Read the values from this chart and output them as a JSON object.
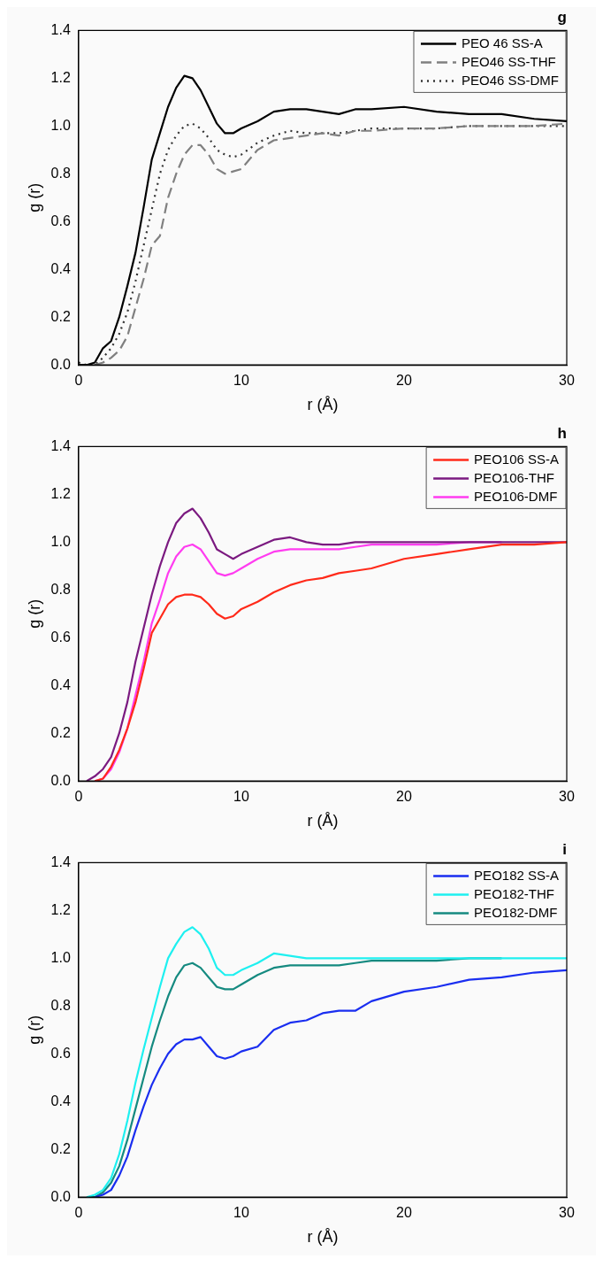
{
  "chart_data": [
    {
      "type": "line",
      "title": "g",
      "xlabel": "r (Å)",
      "ylabel": "g (r)",
      "legend": "top right",
      "marker": "none",
      "x": [
        0,
        0.5,
        1,
        1.5,
        2,
        2.5,
        3,
        3.5,
        4,
        4.5,
        5,
        5.5,
        6,
        6.5,
        7,
        7.5,
        8,
        8.5,
        9,
        9.5,
        10,
        11,
        12,
        13,
        14,
        15,
        16,
        17,
        18,
        20,
        22,
        24,
        26,
        28,
        30
      ],
      "xlim": [
        0,
        30
      ],
      "xticks": [
        0,
        10,
        20,
        30
      ],
      "ylim": [
        0,
        1.4
      ],
      "yticks": [
        {
          "value": 0,
          "label": "0.0"
        },
        {
          "value": 0.2,
          "label": "0.2"
        },
        {
          "value": 0.4,
          "label": "0.4"
        },
        {
          "value": 0.6,
          "label": "0.6"
        },
        {
          "value": 0.8,
          "label": "0.8"
        },
        {
          "value": 1,
          "label": "1.0"
        },
        {
          "value": 1.2,
          "label": "1.2"
        },
        {
          "value": 1.4,
          "label": "1.4"
        }
      ],
      "series": [
        {
          "name": "PEO 46 SS-A",
          "color": "#000000",
          "line_style": "solid",
          "values": [
            0,
            0,
            0.01,
            0.07,
            0.1,
            0.2,
            0.33,
            0.47,
            0.66,
            0.86,
            0.97,
            1.08,
            1.16,
            1.21,
            1.2,
            1.15,
            1.08,
            1.01,
            0.97,
            0.97,
            0.99,
            1.02,
            1.06,
            1.07,
            1.07,
            1.06,
            1.05,
            1.07,
            1.07,
            1.08,
            1.06,
            1.05,
            1.05,
            1.03,
            1.02
          ]
        },
        {
          "name": "PEO46 SS-THF",
          "color": "#808080",
          "line_style": "dashed",
          "values": [
            0,
            0,
            0,
            0.01,
            0.03,
            0.06,
            0.12,
            0.24,
            0.36,
            0.5,
            0.54,
            0.7,
            0.8,
            0.88,
            0.92,
            0.92,
            0.88,
            0.82,
            0.8,
            0.81,
            0.82,
            0.9,
            0.94,
            0.95,
            0.96,
            0.97,
            0.96,
            0.98,
            0.98,
            0.99,
            0.99,
            1,
            1,
            1,
            1.01
          ]
        },
        {
          "name": "PEO46 SS-DMF",
          "color": "#333333",
          "line_style": "dotted",
          "values": [
            0.01,
            0,
            0,
            0.03,
            0.07,
            0.13,
            0.22,
            0.35,
            0.5,
            0.65,
            0.8,
            0.9,
            0.96,
            1,
            1.01,
            0.99,
            0.95,
            0.9,
            0.88,
            0.87,
            0.88,
            0.93,
            0.96,
            0.98,
            0.97,
            0.97,
            0.97,
            0.98,
            0.99,
            0.99,
            0.99,
            1,
            1,
            1,
            1
          ]
        }
      ]
    },
    {
      "type": "line",
      "title": "h",
      "xlabel": "r (Å)",
      "ylabel": "g (r)",
      "legend": "top right",
      "marker": "none",
      "x": [
        0.5,
        1,
        1.5,
        2,
        2.5,
        3,
        3.5,
        4,
        4.5,
        5,
        5.5,
        6,
        6.5,
        7,
        7.5,
        8,
        8.5,
        9,
        9.5,
        10,
        11,
        12,
        13,
        14,
        15,
        16,
        17,
        18,
        20,
        22,
        24,
        26,
        28,
        30
      ],
      "xlim": [
        0,
        30
      ],
      "xticks": [
        0,
        10,
        20,
        30
      ],
      "ylim": [
        0,
        1.4
      ],
      "yticks": [
        {
          "value": 0,
          "label": "0.0"
        },
        {
          "value": 0.2,
          "label": "0.2"
        },
        {
          "value": 0.4,
          "label": "0.4"
        },
        {
          "value": 0.6,
          "label": "0.6"
        },
        {
          "value": 0.8,
          "label": "0.8"
        },
        {
          "value": 1,
          "label": "1.0"
        },
        {
          "value": 1.2,
          "label": "1.2"
        },
        {
          "value": 1.4,
          "label": "1.4"
        }
      ],
      "series": [
        {
          "name": "PEO106 SS-A",
          "color": "#ff2a1a",
          "line_style": "solid",
          "values": [
            null,
            0,
            0.01,
            0.06,
            0.13,
            0.22,
            0.33,
            0.47,
            0.62,
            0.68,
            0.74,
            0.77,
            0.78,
            0.78,
            0.77,
            0.74,
            0.7,
            0.68,
            0.69,
            0.72,
            0.75,
            0.79,
            0.82,
            0.84,
            0.85,
            0.87,
            0.88,
            0.89,
            0.93,
            0.95,
            0.97,
            0.99,
            0.99,
            1
          ]
        },
        {
          "name": "PEO106-THF",
          "color": "#7b1a80",
          "line_style": "solid",
          "values": [
            0,
            0.02,
            0.05,
            0.1,
            0.2,
            0.33,
            0.5,
            0.64,
            0.78,
            0.9,
            1,
            1.08,
            1.12,
            1.14,
            1.1,
            1.04,
            0.97,
            0.95,
            0.93,
            0.95,
            0.98,
            1.01,
            1.02,
            1,
            0.99,
            0.99,
            1,
            1,
            1,
            1,
            1,
            1,
            1,
            1
          ]
        },
        {
          "name": "PEO106-DMF",
          "color": "#ff3cf0",
          "line_style": "solid",
          "values": [
            null,
            0,
            0.01,
            0.05,
            0.12,
            0.22,
            0.36,
            0.5,
            0.66,
            0.76,
            0.87,
            0.94,
            0.98,
            0.99,
            0.97,
            0.92,
            0.87,
            0.86,
            0.87,
            0.89,
            0.93,
            0.96,
            0.97,
            0.97,
            0.97,
            0.97,
            0.98,
            0.99,
            0.99,
            0.99,
            1,
            1,
            null,
            null
          ]
        }
      ]
    },
    {
      "type": "line",
      "title": "i",
      "xlabel": "r (Å)",
      "ylabel": "g (r)",
      "legend": "top right",
      "marker": "none",
      "x": [
        0.5,
        1,
        1.5,
        2,
        2.5,
        3,
        3.5,
        4,
        4.5,
        5,
        5.5,
        6,
        6.5,
        7,
        7.5,
        8,
        8.5,
        9,
        9.5,
        10,
        11,
        12,
        13,
        14,
        15,
        16,
        17,
        18,
        20,
        22,
        24,
        26,
        28,
        30
      ],
      "xlim": [
        0,
        30
      ],
      "xticks": [
        0,
        10,
        20,
        30
      ],
      "ylim": [
        0,
        1.4
      ],
      "yticks": [
        {
          "value": 0,
          "label": "0.0"
        },
        {
          "value": 0.2,
          "label": "0.2"
        },
        {
          "value": 0.4,
          "label": "0.4"
        },
        {
          "value": 0.6,
          "label": "0.6"
        },
        {
          "value": 0.8,
          "label": "0.8"
        },
        {
          "value": 1,
          "label": "1.0"
        },
        {
          "value": 1.2,
          "label": "1.2"
        },
        {
          "value": 1.4,
          "label": "1.4"
        }
      ],
      "series": [
        {
          "name": "PEO182 SS-A",
          "color": "#1a2ef0",
          "line_style": "solid",
          "values": [
            null,
            0,
            0.01,
            0.03,
            0.09,
            0.17,
            0.28,
            0.38,
            0.47,
            0.54,
            0.6,
            0.64,
            0.66,
            0.66,
            0.67,
            0.63,
            0.59,
            0.58,
            0.59,
            0.61,
            0.63,
            0.7,
            0.73,
            0.74,
            0.77,
            0.78,
            0.78,
            0.82,
            0.86,
            0.88,
            0.91,
            0.92,
            0.94,
            0.95
          ]
        },
        {
          "name": "PEO182-THF",
          "color": "#1ef0f0",
          "line_style": "solid",
          "values": [
            0,
            0.01,
            0.03,
            0.08,
            0.18,
            0.32,
            0.48,
            0.62,
            0.75,
            0.88,
            1,
            1.06,
            1.11,
            1.13,
            1.1,
            1.04,
            0.96,
            0.93,
            0.93,
            0.95,
            0.98,
            1.02,
            1.01,
            1,
            1,
            1,
            1,
            1,
            1,
            1,
            1,
            1,
            1,
            1
          ]
        },
        {
          "name": "PEO182-DMF",
          "color": "#158a80",
          "line_style": "solid",
          "values": [
            0,
            0,
            0.02,
            0.06,
            0.13,
            0.24,
            0.37,
            0.5,
            0.63,
            0.74,
            0.84,
            0.92,
            0.97,
            0.98,
            0.96,
            0.92,
            0.88,
            0.87,
            0.87,
            0.89,
            0.93,
            0.96,
            0.97,
            0.97,
            0.97,
            0.97,
            0.98,
            0.99,
            0.99,
            0.99,
            1,
            1,
            null,
            null
          ]
        }
      ]
    }
  ]
}
